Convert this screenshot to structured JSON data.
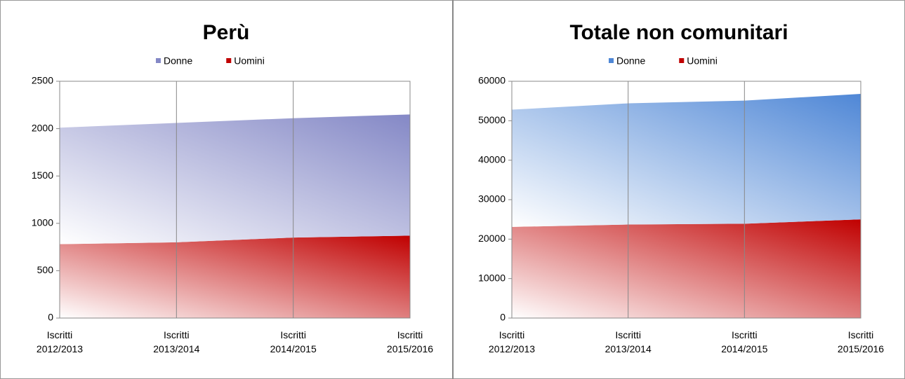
{
  "chart_data": [
    {
      "type": "area",
      "stacked": true,
      "title": "Perù",
      "categories": [
        "Iscritti 2012/2013",
        "Iscritti 2013/2014",
        "Iscritti 2014/2015",
        "Iscritti 2015/2016"
      ],
      "series": [
        {
          "name": "Donne",
          "color": "#8488c6",
          "values": [
            1230,
            1260,
            1260,
            1280
          ]
        },
        {
          "name": "Uomini",
          "color": "#c00000",
          "values": [
            780,
            800,
            850,
            870
          ]
        }
      ],
      "ylim": [
        0,
        2500
      ],
      "yticks": [
        0,
        500,
        1000,
        1500,
        2000,
        2500
      ],
      "grid": true
    },
    {
      "type": "area",
      "stacked": true,
      "title": "Totale non comunitari",
      "categories": [
        "Iscritti 2012/2013",
        "Iscritti 2013/2014",
        "Iscritti 2014/2015",
        "Iscritti 2015/2016"
      ],
      "series": [
        {
          "name": "Donne",
          "color": "#4f87d6",
          "values": [
            29700,
            30700,
            31200,
            31800
          ]
        },
        {
          "name": "Uomini",
          "color": "#c00000",
          "values": [
            23100,
            23700,
            23900,
            25000
          ]
        }
      ],
      "ylim": [
        0,
        60000
      ],
      "yticks": [
        0,
        10000,
        20000,
        30000,
        40000,
        50000,
        60000
      ],
      "grid": true
    }
  ]
}
